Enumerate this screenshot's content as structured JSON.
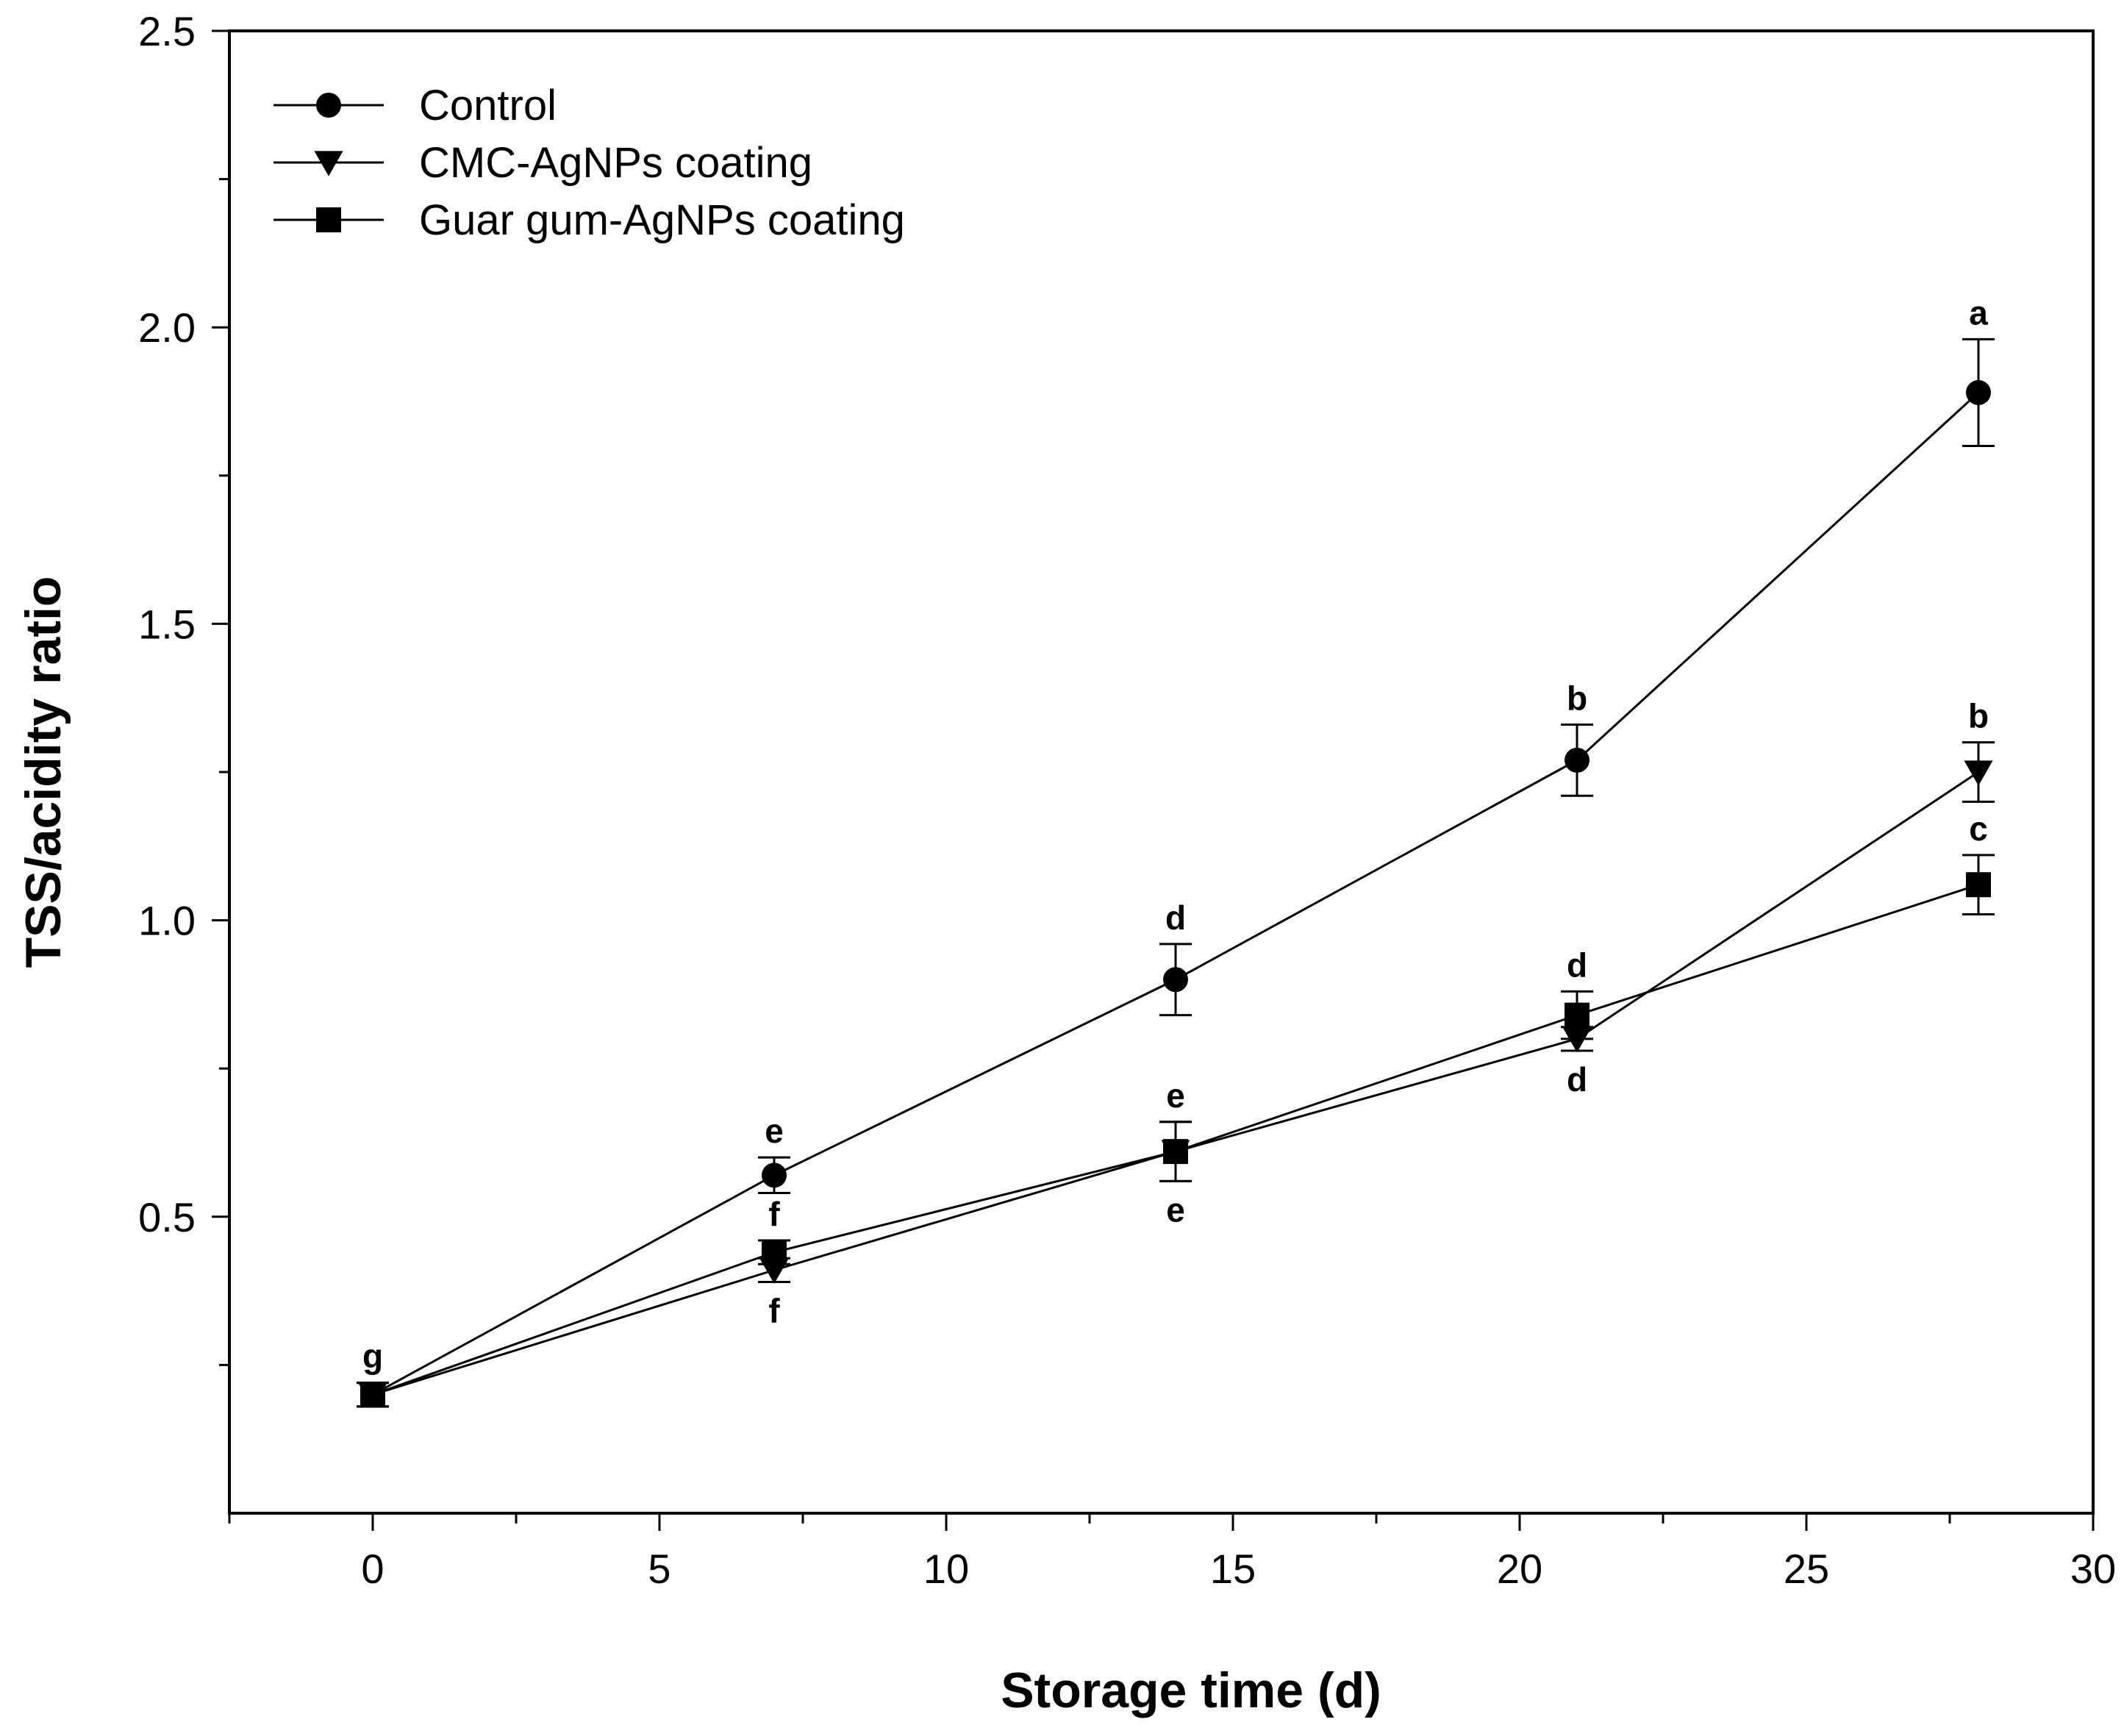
{
  "chart_data": {
    "type": "line",
    "title": "",
    "xlabel": "Storage time (d)",
    "ylabel": "TSS/acidity ratio",
    "xlim": [
      -2.5,
      30
    ],
    "ylim": [
      0,
      2.5
    ],
    "xticks": [
      0,
      5,
      10,
      15,
      20,
      25,
      30
    ],
    "xtick_labels": [
      "0",
      "5",
      "10",
      "15",
      "20",
      "25",
      "30"
    ],
    "yticks": [
      0.5,
      1.0,
      1.5,
      2.0,
      2.5
    ],
    "ytick_labels": [
      "0.5",
      "1.0",
      "1.5",
      "2.0",
      "2.5"
    ],
    "grid": false,
    "legend_position": "top-left",
    "x": [
      0,
      7,
      14,
      21,
      28
    ],
    "series": [
      {
        "name": "Control",
        "marker": "circle",
        "values": [
          0.2,
          0.57,
          0.9,
          1.27,
          1.89
        ],
        "errors": [
          0.02,
          0.03,
          0.06,
          0.06,
          0.09
        ],
        "sig_labels": [
          "g",
          "e",
          "d",
          "b",
          "a"
        ],
        "sig_positions": [
          "above",
          "above",
          "above",
          "above",
          "above"
        ]
      },
      {
        "name": "CMC-AgNPs coating",
        "marker": "triangle-down",
        "values": [
          0.2,
          0.41,
          0.61,
          0.8,
          1.25
        ],
        "errors": [
          0.02,
          0.02,
          0.05,
          0.02,
          0.05
        ],
        "sig_labels": [
          "",
          "f",
          "e",
          "d",
          "b"
        ],
        "sig_positions": [
          "",
          "below",
          "below",
          "below",
          "above"
        ]
      },
      {
        "name": "Guar gum-AgNPs coating",
        "marker": "square",
        "values": [
          0.2,
          0.44,
          0.61,
          0.84,
          1.06
        ],
        "errors": [
          0.02,
          0.02,
          0.05,
          0.04,
          0.05
        ],
        "sig_labels": [
          "",
          "f",
          "e",
          "d",
          "c"
        ],
        "sig_positions": [
          "",
          "above",
          "above",
          "above",
          "above"
        ]
      }
    ]
  }
}
